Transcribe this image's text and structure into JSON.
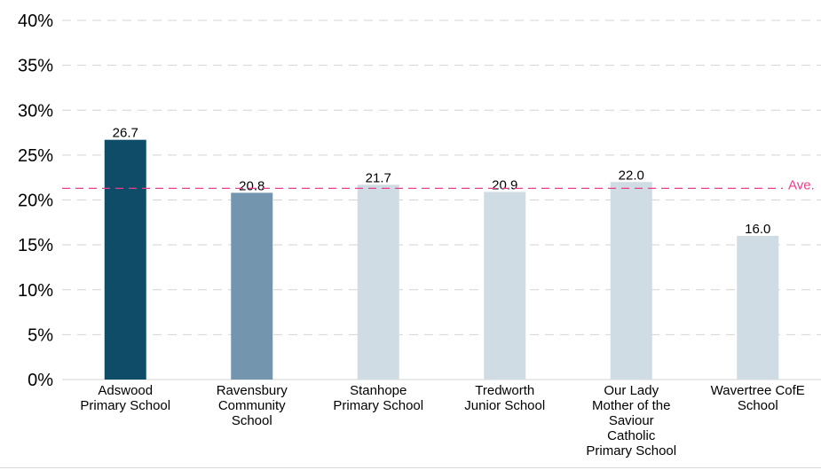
{
  "chart_data": {
    "type": "bar",
    "categories": [
      [
        "Adswood",
        "Primary School"
      ],
      [
        "Ravensbury",
        "Community",
        "School"
      ],
      [
        "Stanhope",
        "Primary School"
      ],
      [
        "Tredworth",
        "Junior School"
      ],
      [
        "Our Lady",
        "Mother of the",
        "Saviour",
        "Catholic",
        "Primary School"
      ],
      [
        "Wavertree CofE",
        "School"
      ]
    ],
    "values": [
      26.7,
      20.8,
      21.7,
      20.9,
      22.0,
      16.0
    ],
    "value_labels": [
      "26.7",
      "20.8",
      "21.7",
      "20.9",
      "22.0",
      "16.0"
    ],
    "bar_colors": [
      "#0f4c68",
      "#7395ad",
      "#d0dce4",
      "#d0dce4",
      "#d0dce4",
      "#d0dce4"
    ],
    "ylim": [
      0,
      40
    ],
    "yticks": [
      0,
      5,
      10,
      15,
      20,
      25,
      30,
      35,
      40
    ],
    "ytick_labels": [
      "0%",
      "5%",
      "10%",
      "15%",
      "20%",
      "25%",
      "30%",
      "35%",
      "40%"
    ],
    "reference_line": {
      "value": 21.3,
      "label": "Ave.",
      "color": "#e83e8c"
    },
    "grid": true,
    "title": "",
    "xlabel": "",
    "ylabel": ""
  }
}
